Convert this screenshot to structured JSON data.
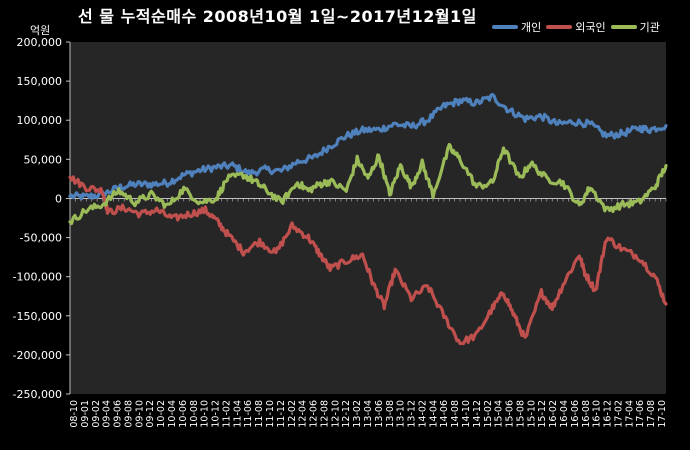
{
  "chart_data": {
    "type": "line",
    "title": "선 물 누적순매수 2008년10월 1일~2017년12월1일",
    "ylabel": "억원",
    "ylim": [
      -250000,
      200000
    ],
    "yticks": [
      200000,
      150000,
      100000,
      50000,
      0,
      -50000,
      -100000,
      -150000,
      -200000,
      -250000
    ],
    "ytick_labels": [
      "200,000",
      "150,000",
      "100,000",
      "50,000",
      "0",
      "-50,000",
      "-100,000",
      "-150,000",
      "-200,000",
      "-250,000"
    ],
    "x_tick_labels": [
      "08-10",
      "09-01",
      "09-02",
      "09-04",
      "09-06",
      "09-08",
      "09-10",
      "09-12",
      "10-02",
      "10-04",
      "10-06",
      "10-08",
      "10-10",
      "10-12",
      "11-02",
      "11-04",
      "11-06",
      "11-08",
      "11-10",
      "11-12",
      "12-02",
      "12-04",
      "12-06",
      "12-08",
      "12-10",
      "12-12",
      "13-02",
      "13-04",
      "13-06",
      "13-08",
      "13-10",
      "13-12",
      "14-02",
      "14-04",
      "14-06",
      "14-08",
      "14-10",
      "14-12",
      "15-02",
      "15-04",
      "15-06",
      "15-08",
      "15-10",
      "15-12",
      "16-02",
      "16-04",
      "16-06",
      "16-08",
      "16-10",
      "16-12",
      "17-02",
      "17-04",
      "17-06",
      "17-08",
      "17-10"
    ],
    "x_start": "2008-10",
    "x_end": "2017-12",
    "grid": false,
    "legend_position": "top-right",
    "series": [
      {
        "name": "개인",
        "color": "#4F81BD",
        "points": [
          [
            "2008-10",
            3000
          ],
          [
            "2009-01",
            2000
          ],
          [
            "2009-04",
            5000
          ],
          [
            "2009-07",
            14000
          ],
          [
            "2009-10",
            18000
          ],
          [
            "2010-01",
            18000
          ],
          [
            "2010-04",
            20000
          ],
          [
            "2010-07",
            30000
          ],
          [
            "2010-10",
            36000
          ],
          [
            "2011-01",
            40000
          ],
          [
            "2011-04",
            42000
          ],
          [
            "2011-07",
            32000
          ],
          [
            "2011-10",
            37000
          ],
          [
            "2012-01",
            35000
          ],
          [
            "2012-04",
            47000
          ],
          [
            "2012-07",
            52000
          ],
          [
            "2012-10",
            67000
          ],
          [
            "2013-01",
            80000
          ],
          [
            "2013-04",
            87000
          ],
          [
            "2013-07",
            88000
          ],
          [
            "2013-10",
            95000
          ],
          [
            "2014-01",
            92000
          ],
          [
            "2014-04",
            100000
          ],
          [
            "2014-07",
            118000
          ],
          [
            "2014-10",
            125000
          ],
          [
            "2015-01",
            122000
          ],
          [
            "2015-04",
            130000
          ],
          [
            "2015-07",
            113000
          ],
          [
            "2015-10",
            102000
          ],
          [
            "2016-01",
            105000
          ],
          [
            "2016-04",
            95000
          ],
          [
            "2016-07",
            98000
          ],
          [
            "2016-10",
            95000
          ],
          [
            "2017-01",
            80000
          ],
          [
            "2017-04",
            83000
          ],
          [
            "2017-07",
            90000
          ],
          [
            "2017-09",
            88000
          ],
          [
            "2017-12",
            93000
          ]
        ]
      },
      {
        "name": "외국인",
        "color": "#C0504D",
        "points": [
          [
            "2008-10",
            27000
          ],
          [
            "2009-01",
            14000
          ],
          [
            "2009-04",
            10000
          ],
          [
            "2009-05",
            -18000
          ],
          [
            "2009-08",
            -12000
          ],
          [
            "2009-11",
            -20000
          ],
          [
            "2010-02",
            -15000
          ],
          [
            "2010-05",
            -26000
          ],
          [
            "2010-08",
            -20000
          ],
          [
            "2010-11",
            -15000
          ],
          [
            "2011-01",
            -28000
          ],
          [
            "2011-03",
            -45000
          ],
          [
            "2011-06",
            -68000
          ],
          [
            "2011-09",
            -55000
          ],
          [
            "2011-12",
            -70000
          ],
          [
            "2012-03",
            -35000
          ],
          [
            "2012-06",
            -50000
          ],
          [
            "2012-08",
            -70000
          ],
          [
            "2012-10",
            -90000
          ],
          [
            "2013-01",
            -80000
          ],
          [
            "2013-04",
            -72000
          ],
          [
            "2013-06",
            -110000
          ],
          [
            "2013-08",
            -138000
          ],
          [
            "2013-10",
            -92000
          ],
          [
            "2014-01",
            -128000
          ],
          [
            "2014-04",
            -112000
          ],
          [
            "2014-07",
            -150000
          ],
          [
            "2014-10",
            -185000
          ],
          [
            "2015-01",
            -175000
          ],
          [
            "2015-04",
            -140000
          ],
          [
            "2015-06",
            -120000
          ],
          [
            "2015-08",
            -150000
          ],
          [
            "2015-10",
            -180000
          ],
          [
            "2016-01",
            -120000
          ],
          [
            "2016-03",
            -140000
          ],
          [
            "2016-05",
            -110000
          ],
          [
            "2016-08",
            -72000
          ],
          [
            "2016-09",
            -95000
          ],
          [
            "2016-11",
            -118000
          ],
          [
            "2017-01",
            -50000
          ],
          [
            "2017-04",
            -65000
          ],
          [
            "2017-07",
            -75000
          ],
          [
            "2017-10",
            -100000
          ],
          [
            "2017-12",
            -135000
          ]
        ]
      },
      {
        "name": "기관",
        "color": "#9BBB59",
        "points": [
          [
            "2008-10",
            -30000
          ],
          [
            "2009-01",
            -15000
          ],
          [
            "2009-04",
            -8000
          ],
          [
            "2009-07",
            10000
          ],
          [
            "2009-10",
            -5000
          ],
          [
            "2010-01",
            5000
          ],
          [
            "2010-04",
            -10000
          ],
          [
            "2010-07",
            12000
          ],
          [
            "2010-10",
            -5000
          ],
          [
            "2011-01",
            0
          ],
          [
            "2011-03",
            25000
          ],
          [
            "2011-06",
            30000
          ],
          [
            "2011-08",
            22000
          ],
          [
            "2011-10",
            12000
          ],
          [
            "2012-01",
            -5000
          ],
          [
            "2012-04",
            20000
          ],
          [
            "2012-06",
            10000
          ],
          [
            "2012-08",
            18000
          ],
          [
            "2012-10",
            22000
          ],
          [
            "2013-01",
            10000
          ],
          [
            "2013-03",
            50000
          ],
          [
            "2013-05",
            25000
          ],
          [
            "2013-07",
            55000
          ],
          [
            "2013-09",
            5000
          ],
          [
            "2013-11",
            42000
          ],
          [
            "2014-01",
            15000
          ],
          [
            "2014-03",
            45000
          ],
          [
            "2014-05",
            5000
          ],
          [
            "2014-08",
            65000
          ],
          [
            "2014-10",
            50000
          ],
          [
            "2015-01",
            15000
          ],
          [
            "2015-04",
            20000
          ],
          [
            "2015-06",
            65000
          ],
          [
            "2015-09",
            25000
          ],
          [
            "2015-11",
            45000
          ],
          [
            "2016-02",
            25000
          ],
          [
            "2016-05",
            20000
          ],
          [
            "2016-08",
            -10000
          ],
          [
            "2016-10",
            15000
          ],
          [
            "2017-01",
            -15000
          ],
          [
            "2017-04",
            -8000
          ],
          [
            "2017-07",
            -5000
          ],
          [
            "2017-10",
            15000
          ],
          [
            "2017-12",
            42000
          ]
        ]
      }
    ]
  }
}
